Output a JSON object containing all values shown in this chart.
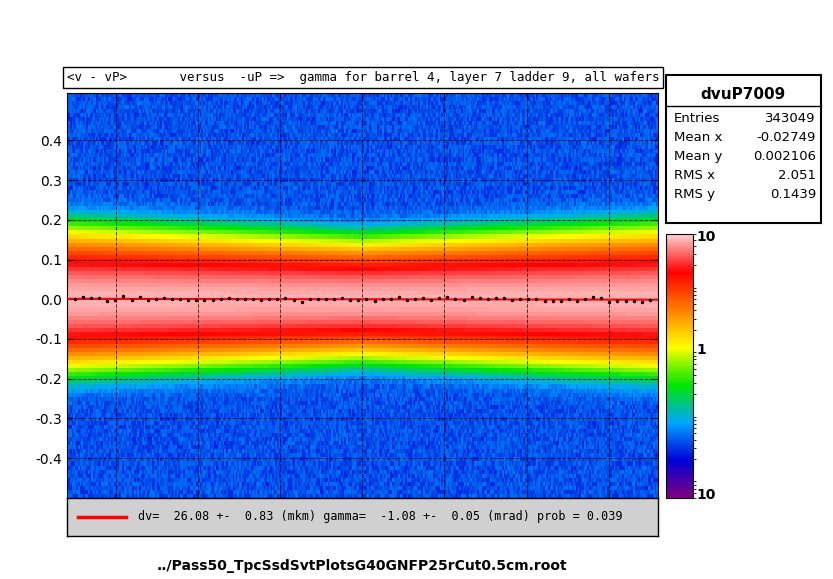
{
  "title": "<v - vP>       versus  -uP =>  gamma for barrel 4, layer 7 ladder 9, all wafers",
  "xlabel": "../Pass50_TpcSsdSvtPlotsG40GNFP25rCut0.5cm.root",
  "hist_name": "dvuP7009",
  "entries": "343049",
  "mean_x": "-0.02749",
  "mean_y": "0.002106",
  "rms_x": "2.051",
  "rms_y": "0.1439",
  "xmin": -3.6,
  "xmax": 3.6,
  "ymin": -0.5,
  "ymax": 0.52,
  "legend_text": "dv=  26.08 +-  0.83 (mkm) gamma=  -1.08 +-  0.05 (mrad) prob = 0.039",
  "fit_slope": -0.000302,
  "fit_intercept": 0.0,
  "background_color": "#ffffff"
}
